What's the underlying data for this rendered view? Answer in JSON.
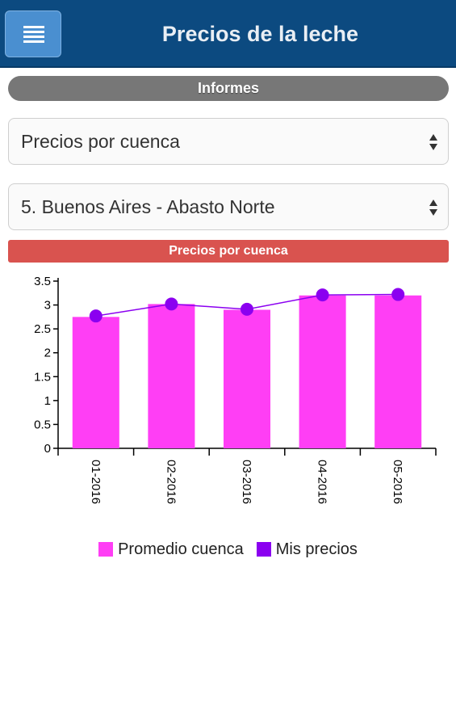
{
  "header": {
    "title": "Precios de la leche",
    "menu_icon": "hamburger-menu-icon"
  },
  "section": {
    "label": "Informes"
  },
  "report_select": {
    "value": "Precios por cuenca"
  },
  "basin_select": {
    "value": "5. Buenos Aires - Abasto Norte"
  },
  "chart_title": "Precios por cuenca",
  "colors": {
    "bar": "#ff3ef5",
    "line": "#8b00f0",
    "header": "#0c4a80",
    "chart_title_bg": "#d9534f"
  },
  "chart_data": {
    "type": "bar",
    "categories": [
      "01-2016",
      "02-2016",
      "03-2016",
      "04-2016",
      "05-2016"
    ],
    "series": [
      {
        "name": "Promedio cuenca",
        "type": "bar",
        "values": [
          2.75,
          3.02,
          2.9,
          3.2,
          3.2
        ]
      },
      {
        "name": "Mis precios",
        "type": "line",
        "values": [
          2.77,
          3.02,
          2.91,
          3.21,
          3.22
        ]
      }
    ],
    "ylim": [
      0,
      3.5
    ],
    "yticks": [
      "0",
      "0.5",
      "1",
      "1.5",
      "2",
      "2.5",
      "3",
      "3.5"
    ],
    "legend_position": "bottom"
  }
}
